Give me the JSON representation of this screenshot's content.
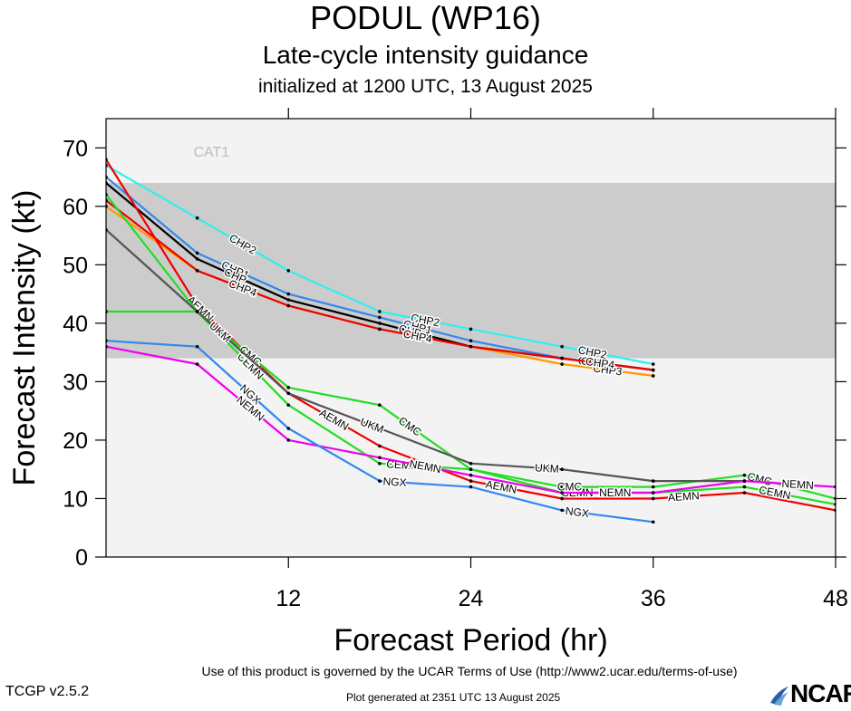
{
  "chart_data": {
    "type": "line",
    "title": "PODUL (WP16)",
    "subtitle": "Late-cycle intensity guidance",
    "subtitle2": "initialized at 1200 UTC, 13 August 2025",
    "xlabel": "Forecast Period (hr)",
    "ylabel": "Forecast Intensity (kt)",
    "xlim": [
      0,
      48
    ],
    "ylim": [
      0,
      75
    ],
    "xticks": [
      12,
      24,
      36,
      48
    ],
    "yticks": [
      0,
      10,
      20,
      30,
      40,
      50,
      60,
      70
    ],
    "category_bands": [
      {
        "label": "CAT1",
        "from": 64,
        "to": 82,
        "color": "#f3f3f3"
      },
      {
        "label": "",
        "from": 34,
        "to": 64,
        "color": "#cccccc"
      },
      {
        "label": "",
        "from": 0,
        "to": 34,
        "color": "#f3f3f3"
      }
    ],
    "series": [
      {
        "name": "CHP2",
        "color": "#33eeee",
        "x": [
          0,
          6,
          12,
          18,
          24,
          30,
          36
        ],
        "y": [
          67,
          58,
          49,
          42,
          39,
          36,
          33
        ],
        "labels_at": [
          9,
          21,
          32
        ]
      },
      {
        "name": "CHP1",
        "color": "#3388ee",
        "x": [
          0,
          6,
          12,
          18,
          24,
          30,
          36
        ],
        "y": [
          65,
          52,
          45,
          41,
          37,
          34,
          32
        ],
        "labels_at": [
          8.5,
          20.5,
          32
        ]
      },
      {
        "name": "CHP3",
        "color": "#ff9900",
        "x": [
          0,
          6,
          12,
          18,
          24,
          30,
          36
        ],
        "y": [
          60,
          49,
          43,
          39,
          36,
          33,
          31
        ],
        "labels_at": [
          9,
          20.5,
          33
        ]
      },
      {
        "name": "CHP",
        "color": "#000000",
        "x": [
          0,
          6,
          12,
          18,
          24,
          30,
          36
        ],
        "y": [
          64,
          51,
          44,
          40,
          36,
          34,
          32
        ],
        "labels_at": [
          8.5,
          20,
          32
        ]
      },
      {
        "name": "CHP4",
        "color": "#ee0000",
        "x": [
          0,
          6,
          12,
          18,
          24,
          30,
          36
        ],
        "y": [
          61,
          49,
          43,
          39,
          36,
          34,
          32
        ],
        "labels_at": [
          9,
          20.5,
          32.5
        ]
      },
      {
        "name": "AEMN",
        "color": "#ee0000",
        "x": [
          0,
          6,
          12,
          18,
          24,
          30,
          36,
          42,
          48
        ],
        "y": [
          68,
          43,
          28,
          19,
          13,
          10,
          10,
          11,
          8
        ],
        "labels_at": [
          6.2,
          15,
          26,
          38
        ]
      },
      {
        "name": "CEMN",
        "color": "#22dd22",
        "x": [
          0,
          6,
          12,
          18,
          24,
          30,
          36,
          42,
          48
        ],
        "y": [
          62,
          42,
          26,
          16,
          15,
          11,
          11,
          12,
          9
        ],
        "labels_at": [
          9.5,
          19.5,
          31,
          44
        ]
      },
      {
        "name": "CMC",
        "color": "#22dd22",
        "x": [
          0,
          6,
          12,
          18,
          24,
          30,
          36,
          42,
          48
        ],
        "y": [
          42,
          42,
          29,
          26,
          15,
          12,
          12,
          14,
          10
        ],
        "labels_at": [
          9.5,
          20,
          30.5,
          43
        ]
      },
      {
        "name": "UKM",
        "color": "#555555",
        "x": [
          0,
          6,
          12,
          18,
          24,
          30,
          36,
          42
        ],
        "y": [
          56,
          42,
          28,
          22,
          16,
          15,
          13,
          13
        ],
        "labels_at": [
          7.5,
          17.5,
          29
        ]
      },
      {
        "name": "NEMN",
        "color": "#ee00ee",
        "x": [
          0,
          6,
          12,
          18,
          24,
          30,
          36,
          42,
          48
        ],
        "y": [
          36,
          33,
          20,
          17,
          14,
          11,
          11,
          13,
          12
        ],
        "labels_at": [
          9.5,
          21,
          33.5,
          45.5
        ]
      },
      {
        "name": "NGX",
        "color": "#3388ee",
        "x": [
          0,
          6,
          12,
          18,
          24,
          30,
          36
        ],
        "y": [
          37,
          36,
          22,
          13,
          12,
          8,
          6
        ],
        "labels_at": [
          9.5,
          19,
          31
        ]
      }
    ]
  },
  "footer": {
    "terms": "Use of this product is governed by the UCAR Terms of Use (http://www2.ucar.edu/terms-of-use)",
    "version": "TCGP v2.5.2",
    "generated": "Plot generated at 2351 UTC   13 August 2025",
    "logo": "NCAR"
  }
}
